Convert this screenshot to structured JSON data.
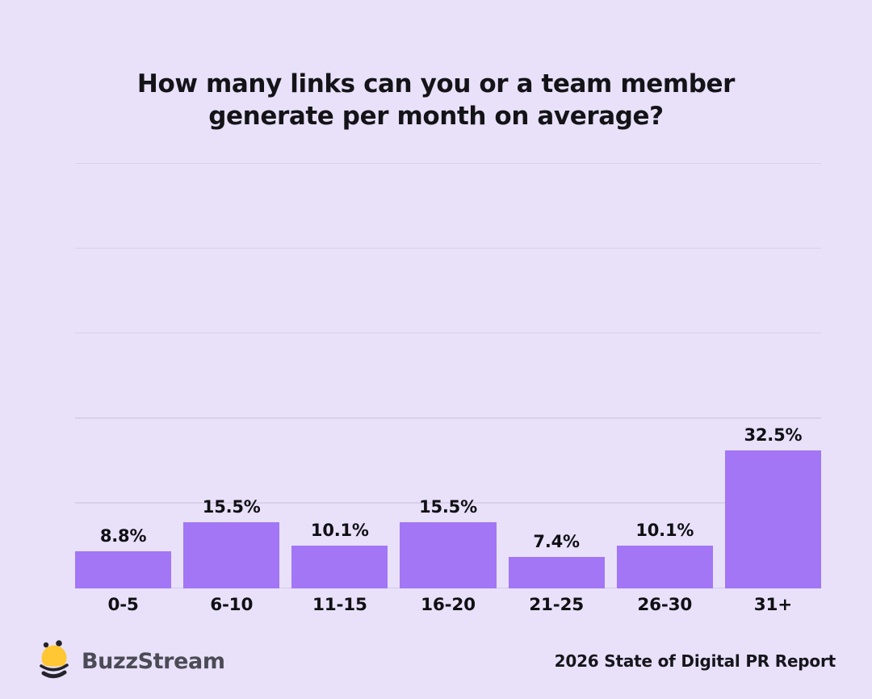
{
  "title": {
    "line1": "How many links can you or a team member",
    "line2": "generate per month on average?"
  },
  "chart_data": {
    "type": "bar",
    "title": "How many links can you or a team member generate per month on average?",
    "categories": [
      "0-5",
      "6-10",
      "11-15",
      "16-20",
      "21-25",
      "26-30",
      "31+"
    ],
    "values": [
      8.8,
      15.5,
      10.1,
      15.5,
      7.4,
      10.1,
      32.5
    ],
    "value_labels": [
      "8.8%",
      "15.5%",
      "10.1%",
      "15.5%",
      "7.4%",
      "10.1%",
      "32.5%"
    ],
    "xlabel": "",
    "ylabel": "",
    "ylim": [
      0,
      100
    ],
    "gridlines_pct": [
      0,
      20,
      40,
      60,
      80,
      100
    ],
    "grid": true,
    "legend": "none",
    "bar_color": "#a276f5"
  },
  "footer": {
    "brand": "BuzzStream",
    "report": "2026 State of Digital PR Report"
  },
  "colors": {
    "background": "#e9e1fa",
    "bar": "#a276f5",
    "gridline": "#d9d0ea",
    "title_text": "#141418",
    "label_text": "#101014",
    "brand_text": "#4b4b55",
    "bee_yellow": "#ffc733",
    "bee_dark": "#232329"
  }
}
